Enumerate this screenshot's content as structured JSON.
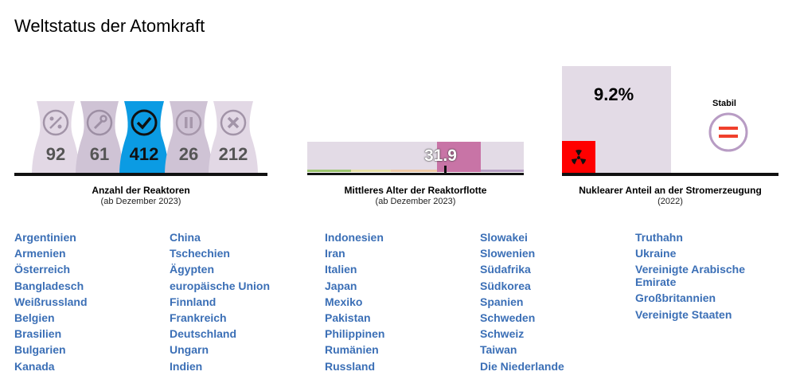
{
  "title": "Weltstatus der Atomkraft",
  "reactors": {
    "items": [
      {
        "label": "92",
        "status": "planned",
        "icon": "wrench-percent-icon"
      },
      {
        "label": "61",
        "status": "under-construction",
        "icon": "wrench-icon"
      },
      {
        "label": "412",
        "status": "operational",
        "icon": "checkmark-icon"
      },
      {
        "label": "26",
        "status": "suspended",
        "icon": "pause-icon"
      },
      {
        "label": "212",
        "status": "shutdown",
        "icon": "x-icon"
      }
    ],
    "caption": "Anzahl der Reaktoren",
    "subcaption": "(ab Dezember 2023)"
  },
  "age": {
    "value": "31.9",
    "caption": "Mittleres Alter der Reaktorflotte",
    "subcaption": "(ab Dezember 2023)"
  },
  "share": {
    "value": "9.2%",
    "trend_label": "Stabil",
    "caption": "Nuklearer Anteil an der Stromerzeugung",
    "subcaption": "(2022)"
  },
  "countries": [
    [
      "Argentinien",
      "Armenien",
      "Österreich",
      "Bangladesch",
      "Weißrussland",
      "Belgien",
      "Brasilien",
      "Bulgarien",
      "Kanada"
    ],
    [
      "China",
      "Tschechien",
      "Ägypten",
      "europäische Union",
      "Finnland",
      "Frankreich",
      "Deutschland",
      "Ungarn",
      "Indien"
    ],
    [
      "Indonesien",
      "Iran",
      "Italien",
      "Japan",
      "Mexiko",
      "Pakistan",
      "Philippinen",
      "Rumänien",
      "Russland"
    ],
    [
      "Slowakei",
      "Slowenien",
      "Südafrika",
      "Südkorea",
      "Spanien",
      "Schweden",
      "Schweiz",
      "Taiwan",
      "Die Niederlande"
    ],
    [
      "Truthahn",
      "Ukraine",
      "Vereinigte Arabische Emirate",
      "Großbritannien",
      "Vereinigte Staaten"
    ]
  ],
  "colors": {
    "accent": "#0b9be3",
    "tower": "#ddd3e0",
    "tower_dark": "#cfc3d5",
    "age_marker": "#c874a6",
    "link": "#3b6fb6",
    "nuclear_red": "#ff0000"
  }
}
